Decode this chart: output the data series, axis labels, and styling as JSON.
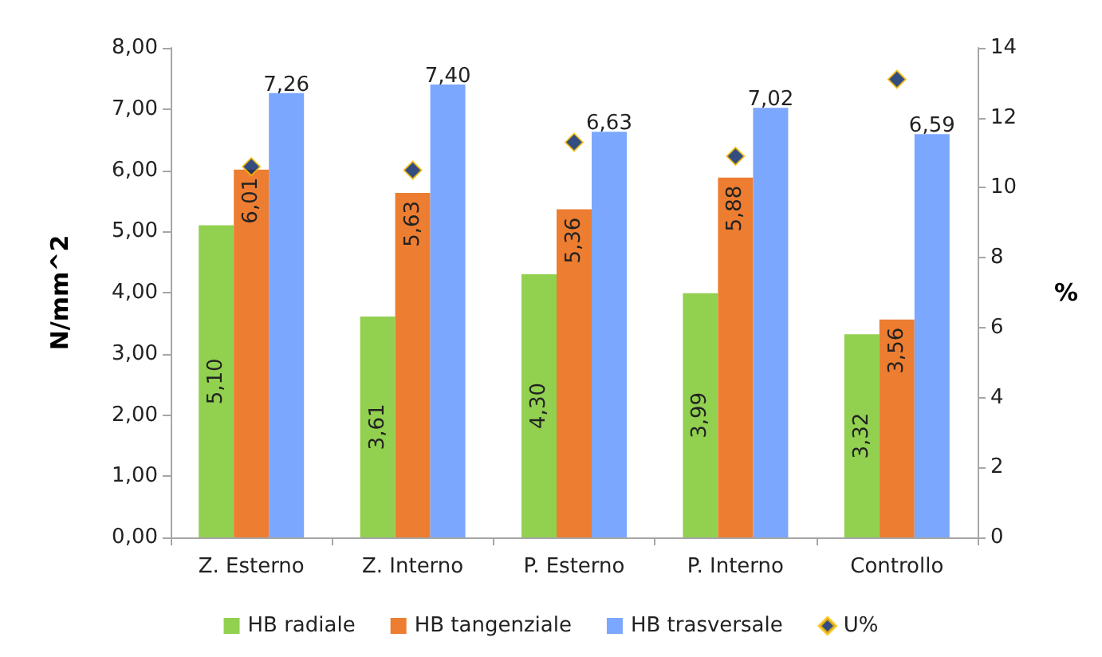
{
  "chart_data": {
    "type": "bar",
    "ylabel": "N/mm^2",
    "y2label": "%",
    "categories": [
      "Z. Esterno",
      "Z. Interno",
      "P. Esterno",
      "P. Interno",
      "Controllo"
    ],
    "series": [
      {
        "name": "HB radiale",
        "color": "#92d050",
        "values": [
          5.1,
          3.61,
          4.3,
          3.99,
          3.32
        ],
        "value_labels": [
          "5,10",
          "3,61",
          "4,30",
          "3,99",
          "3,32"
        ]
      },
      {
        "name": "HB tangenziale",
        "color": "#ed7d31",
        "values": [
          6.01,
          5.63,
          5.36,
          5.88,
          3.56
        ],
        "value_labels": [
          "6,01",
          "5,63",
          "5,36",
          "5,88",
          "3,56"
        ]
      },
      {
        "name": "HB trasversale",
        "color": "#7ba7ff",
        "values": [
          7.26,
          7.4,
          6.63,
          7.02,
          6.59
        ],
        "value_labels": [
          "7,26",
          "7,40",
          "6,63",
          "7,02",
          "6,59"
        ]
      },
      {
        "name": "U%",
        "type": "scatter",
        "axis": "y2",
        "marker": "diamond",
        "color": "#002060",
        "x": [
          "Z. Esterno",
          "Z. Interno",
          "P. Esterno",
          "P. Interno",
          "Controllo"
        ],
        "values": [
          10.6,
          10.5,
          11.3,
          10.9,
          13.1
        ]
      }
    ],
    "ylim": [
      0,
      8
    ],
    "yticks": [
      {
        "value": 0,
        "label": "0,00"
      },
      {
        "value": 1,
        "label": "1,00"
      },
      {
        "value": 2,
        "label": "2,00"
      },
      {
        "value": 3,
        "label": "3,00"
      },
      {
        "value": 4,
        "label": "4,00"
      },
      {
        "value": 5,
        "label": "5,00"
      },
      {
        "value": 6,
        "label": "6,00"
      },
      {
        "value": 7,
        "label": "7,00"
      },
      {
        "value": 8,
        "label": "8,00"
      }
    ],
    "y2lim": [
      0,
      14
    ],
    "y2ticks": [
      0,
      2,
      4,
      6,
      8,
      10,
      12,
      14
    ],
    "grid": false,
    "legend": "bottom"
  }
}
